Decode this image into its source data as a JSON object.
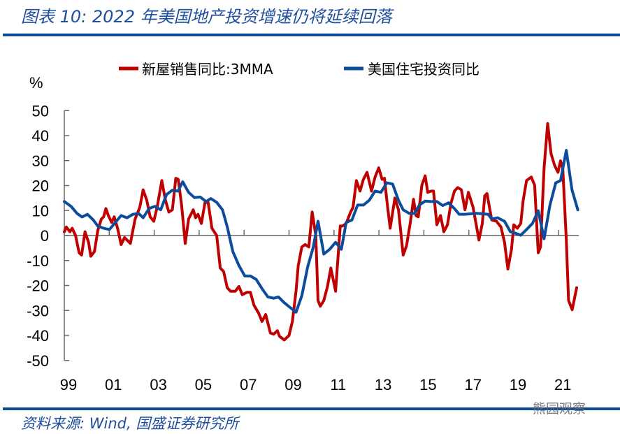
{
  "header": {
    "title": "图表 10:  2022 年美国地产投资增速仍将延续回落"
  },
  "footer": {
    "source": "资料来源:  Wind, 国盛证券研究所",
    "watermark": "熊园观察"
  },
  "colors": {
    "rule": "#0b4c9c",
    "red": "#c00000",
    "blue": "#0b4c9c"
  },
  "chart_data": {
    "type": "line",
    "title": "",
    "ylabel": "%",
    "xlabel": "",
    "ylim": [
      -50,
      50
    ],
    "xlim": [
      1999,
      2021.9
    ],
    "yticks": [
      "50",
      "40",
      "30",
      "20",
      "10",
      "0",
      "-10",
      "-20",
      "-30",
      "-40",
      "-50"
    ],
    "xtick_labels": [
      "99",
      "01",
      "03",
      "05",
      "07",
      "09",
      "11",
      "13",
      "15",
      "17",
      "19",
      "21"
    ],
    "grid": false,
    "legend": "top",
    "series": [
      {
        "name": "新屋销售同比:3MMA",
        "color": "#c00000",
        "points": [
          [
            1999.0,
            1.5
          ],
          [
            1999.09,
            3.4
          ],
          [
            1999.25,
            1.5
          ],
          [
            1999.35,
            2.9
          ],
          [
            1999.5,
            0
          ],
          [
            1999.66,
            -6.9
          ],
          [
            1999.77,
            -7.8
          ],
          [
            1999.92,
            1.5
          ],
          [
            2000.08,
            -2.7
          ],
          [
            2000.18,
            -8.3
          ],
          [
            2000.34,
            -6.4
          ],
          [
            2000.49,
            2
          ],
          [
            2000.65,
            6.6
          ],
          [
            2000.75,
            7.5
          ],
          [
            2000.85,
            10.8
          ],
          [
            2000.96,
            8
          ],
          [
            2001.11,
            5.2
          ],
          [
            2001.22,
            7.5
          ],
          [
            2001.37,
            2.9
          ],
          [
            2001.53,
            -3.6
          ],
          [
            2001.68,
            -0.8
          ],
          [
            2001.79,
            -1.8
          ],
          [
            2001.94,
            -3.2
          ],
          [
            2002.15,
            6.6
          ],
          [
            2002.36,
            11.3
          ],
          [
            2002.51,
            18.3
          ],
          [
            2002.67,
            14.1
          ],
          [
            2002.82,
            7.5
          ],
          [
            2002.98,
            5.7
          ],
          [
            2003.13,
            11.3
          ],
          [
            2003.34,
            22
          ],
          [
            2003.5,
            14.1
          ],
          [
            2003.65,
            9.4
          ],
          [
            2003.81,
            10.3
          ],
          [
            2003.96,
            22.9
          ],
          [
            2004.07,
            22.5
          ],
          [
            2004.22,
            12.2
          ],
          [
            2004.38,
            -3.2
          ],
          [
            2004.53,
            6.6
          ],
          [
            2004.74,
            10.3
          ],
          [
            2004.84,
            7.1
          ],
          [
            2004.95,
            8.5
          ],
          [
            2005.1,
            4.8
          ],
          [
            2005.26,
            13.2
          ],
          [
            2005.4,
            13.2
          ],
          [
            2005.57,
            2.9
          ],
          [
            2005.78,
            0
          ],
          [
            2005.94,
            -13
          ],
          [
            2006.09,
            -14.4
          ],
          [
            2006.25,
            -20.9
          ],
          [
            2006.4,
            -22.3
          ],
          [
            2006.61,
            -22.3
          ],
          [
            2006.77,
            -20.4
          ],
          [
            2006.92,
            -23.7
          ],
          [
            2007.13,
            -22.7
          ],
          [
            2007.28,
            -22.7
          ],
          [
            2007.44,
            -27.9
          ],
          [
            2007.65,
            -31.1
          ],
          [
            2007.8,
            -34.4
          ],
          [
            2007.96,
            -31.6
          ],
          [
            2008.17,
            -39
          ],
          [
            2008.32,
            -39.5
          ],
          [
            2008.48,
            -38.1
          ],
          [
            2008.58,
            -40.4
          ],
          [
            2008.79,
            -41.8
          ],
          [
            2009.0,
            -40
          ],
          [
            2009.15,
            -34.4
          ],
          [
            2009.31,
            -22.3
          ],
          [
            2009.41,
            -12
          ],
          [
            2009.57,
            -4.6
          ],
          [
            2009.72,
            -3.6
          ],
          [
            2009.88,
            -4.6
          ],
          [
            2010.03,
            9.4
          ],
          [
            2010.19,
            0
          ],
          [
            2010.29,
            -26
          ],
          [
            2010.39,
            -28.3
          ],
          [
            2010.55,
            -26
          ],
          [
            2010.71,
            -20.4
          ],
          [
            2010.86,
            -13
          ],
          [
            2011.07,
            -22.3
          ],
          [
            2011.28,
            3.8
          ],
          [
            2011.38,
            3.8
          ],
          [
            2011.54,
            4.8
          ],
          [
            2011.74,
            9.4
          ],
          [
            2011.85,
            11.3
          ],
          [
            2012.0,
            22
          ],
          [
            2012.16,
            17.8
          ],
          [
            2012.31,
            22.5
          ],
          [
            2012.47,
            25.3
          ],
          [
            2012.67,
            17.8
          ],
          [
            2012.83,
            23.4
          ],
          [
            2012.99,
            27.1
          ],
          [
            2013.14,
            22.5
          ],
          [
            2013.25,
            22.9
          ],
          [
            2013.35,
            14.1
          ],
          [
            2013.5,
            2.9
          ],
          [
            2013.71,
            15
          ],
          [
            2013.87,
            10.3
          ],
          [
            2014.08,
            -7.8
          ],
          [
            2014.23,
            -4.1
          ],
          [
            2014.39,
            4.8
          ],
          [
            2014.54,
            14.5
          ],
          [
            2014.65,
            8
          ],
          [
            2014.75,
            7.5
          ],
          [
            2014.91,
            20.1
          ],
          [
            2015.06,
            23.9
          ],
          [
            2015.17,
            17.3
          ],
          [
            2015.32,
            17.8
          ],
          [
            2015.43,
            17.8
          ],
          [
            2015.58,
            4.3
          ],
          [
            2015.74,
            8
          ],
          [
            2015.89,
            1.5
          ],
          [
            2016.05,
            4.3
          ],
          [
            2016.2,
            12.7
          ],
          [
            2016.36,
            17.8
          ],
          [
            2016.51,
            19.2
          ],
          [
            2016.67,
            18.3
          ],
          [
            2016.83,
            10.3
          ],
          [
            2016.98,
            17.3
          ],
          [
            2017.19,
            11.3
          ],
          [
            2017.45,
            -1.8
          ],
          [
            2017.6,
            4.8
          ],
          [
            2017.71,
            15.9
          ],
          [
            2017.81,
            16.8
          ],
          [
            2018.02,
            6.2
          ],
          [
            2018.23,
            5.7
          ],
          [
            2018.43,
            3.4
          ],
          [
            2018.59,
            -2.7
          ],
          [
            2018.74,
            -13.4
          ],
          [
            2018.9,
            -5.5
          ],
          [
            2019.0,
            4.3
          ],
          [
            2019.16,
            2.9
          ],
          [
            2019.31,
            4.8
          ],
          [
            2019.42,
            14.1
          ],
          [
            2019.57,
            22
          ],
          [
            2019.78,
            23.4
          ],
          [
            2019.93,
            20.1
          ],
          [
            2020.09,
            -6.9
          ],
          [
            2020.19,
            -4.6
          ],
          [
            2020.35,
            27.1
          ],
          [
            2020.51,
            44.8
          ],
          [
            2020.66,
            32.7
          ],
          [
            2020.82,
            28
          ],
          [
            2020.97,
            25.3
          ],
          [
            2021.08,
            29.9
          ],
          [
            2021.18,
            27.1
          ],
          [
            2021.34,
            -1.8
          ],
          [
            2021.44,
            -26
          ],
          [
            2021.6,
            -29.7
          ],
          [
            2021.8,
            -20.9
          ]
        ]
      },
      {
        "name": "美国住宅投资同比",
        "color": "#0b4c9c",
        "points": [
          [
            1999.0,
            13.6
          ],
          [
            1999.3,
            11.7
          ],
          [
            1999.56,
            8.9
          ],
          [
            1999.79,
            7.4
          ],
          [
            2000.03,
            8.5
          ],
          [
            2000.29,
            6.2
          ],
          [
            2000.49,
            3.8
          ],
          [
            2000.75,
            2.9
          ],
          [
            2001.01,
            2.4
          ],
          [
            2001.27,
            5.2
          ],
          [
            2001.53,
            8
          ],
          [
            2001.79,
            7.1
          ],
          [
            2002.05,
            8.5
          ],
          [
            2002.31,
            8.8
          ],
          [
            2002.51,
            7.1
          ],
          [
            2002.77,
            10.8
          ],
          [
            2003.03,
            11.7
          ],
          [
            2003.29,
            10.3
          ],
          [
            2003.55,
            16.4
          ],
          [
            2003.8,
            18.1
          ],
          [
            2004.06,
            17.8
          ],
          [
            2004.27,
            21.5
          ],
          [
            2004.53,
            17.3
          ],
          [
            2004.79,
            15.2
          ],
          [
            2005.05,
            15.4
          ],
          [
            2005.31,
            13.6
          ],
          [
            2005.52,
            14.8
          ],
          [
            2005.78,
            13.3
          ],
          [
            2006.04,
            10.3
          ],
          [
            2006.25,
            3.5
          ],
          [
            2006.5,
            -6.4
          ],
          [
            2006.77,
            -12
          ],
          [
            2007.03,
            -16.2
          ],
          [
            2007.28,
            -16.2
          ],
          [
            2007.54,
            -17.6
          ],
          [
            2007.8,
            -21.3
          ],
          [
            2008.06,
            -24.6
          ],
          [
            2008.32,
            -25.1
          ],
          [
            2008.53,
            -24.6
          ],
          [
            2008.79,
            -26.9
          ],
          [
            2009.05,
            -28.8
          ],
          [
            2009.31,
            -30.7
          ],
          [
            2009.57,
            -24.1
          ],
          [
            2009.83,
            -12.5
          ],
          [
            2010.08,
            -4.6
          ],
          [
            2010.29,
            5.7
          ],
          [
            2010.55,
            -7.4
          ],
          [
            2010.81,
            -5.5
          ],
          [
            2011.07,
            -2.7
          ],
          [
            2011.33,
            -5.5
          ],
          [
            2011.54,
            5.2
          ],
          [
            2011.8,
            6.2
          ],
          [
            2012.05,
            12.2
          ],
          [
            2012.31,
            12.2
          ],
          [
            2012.57,
            14.1
          ],
          [
            2012.83,
            17.8
          ],
          [
            2013.09,
            17.3
          ],
          [
            2013.35,
            21.1
          ],
          [
            2013.61,
            20.6
          ],
          [
            2013.87,
            14.1
          ],
          [
            2014.08,
            10.3
          ],
          [
            2014.34,
            8.9
          ],
          [
            2014.6,
            8.9
          ],
          [
            2014.8,
            12.2
          ],
          [
            2015.06,
            13.8
          ],
          [
            2015.32,
            13.6
          ],
          [
            2015.58,
            13.6
          ],
          [
            2015.84,
            12
          ],
          [
            2016.1,
            13.1
          ],
          [
            2016.36,
            10.8
          ],
          [
            2016.57,
            8.5
          ],
          [
            2016.83,
            8.5
          ],
          [
            2017.08,
            8.7
          ],
          [
            2017.34,
            8.9
          ],
          [
            2017.6,
            8.7
          ],
          [
            2017.86,
            8.5
          ],
          [
            2018.02,
            6.6
          ],
          [
            2018.28,
            7.1
          ],
          [
            2018.59,
            5.7
          ],
          [
            2018.85,
            1.5
          ],
          [
            2019.11,
            0.8
          ],
          [
            2019.31,
            0.1
          ],
          [
            2019.57,
            2.4
          ],
          [
            2019.83,
            4.8
          ],
          [
            2020.09,
            9.9
          ],
          [
            2020.35,
            -1.3
          ],
          [
            2020.61,
            12.2
          ],
          [
            2020.87,
            21.1
          ],
          [
            2021.08,
            22
          ],
          [
            2021.34,
            34.1
          ],
          [
            2021.59,
            18.3
          ],
          [
            2021.85,
            10.3
          ]
        ]
      }
    ]
  }
}
